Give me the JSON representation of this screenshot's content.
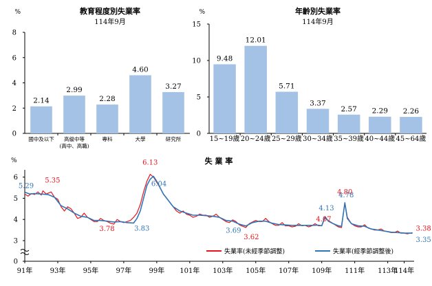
{
  "chart_data": [
    {
      "type": "bar",
      "title": "教育程度別失業率",
      "subtitle": "114年9月",
      "unit": "%",
      "categories": [
        "國中及以下",
        "高級中等\n(高中、高職)",
        "專科",
        "大學",
        "研究所"
      ],
      "values": [
        2.14,
        2.99,
        2.28,
        4.6,
        3.27
      ],
      "value_labels": [
        "2.14",
        "2.99",
        "2.28",
        "4.60",
        "3.27"
      ],
      "y_ticks": [
        "0",
        "2",
        "4",
        "6",
        "8"
      ],
      "ylim": [
        0,
        8
      ],
      "bar_color": "#a4c2e6"
    },
    {
      "type": "bar",
      "title": "年齡別失業率",
      "subtitle": "114年9月",
      "unit": "%",
      "categories": [
        "15~19歲",
        "20~24歲",
        "25~29歲",
        "30~34歲",
        "35~39歲",
        "40~44歲",
        "45~64歲"
      ],
      "values": [
        9.48,
        12.01,
        5.71,
        3.37,
        2.57,
        2.29,
        2.26
      ],
      "value_labels": [
        "9.48",
        "12.01",
        "5.71",
        "3.37",
        "2.57",
        "2.29",
        "2.26"
      ],
      "y_ticks": [
        "0",
        "5",
        "10",
        "15"
      ],
      "ylim": [
        0,
        15
      ],
      "bar_color": "#a4c2e6"
    },
    {
      "type": "line",
      "title": "失 業 率",
      "unit": "%",
      "x_ticks": [
        "91年",
        "93年",
        "95年",
        "97年",
        "99年",
        "101年",
        "103年",
        "105年",
        "107年",
        "109年",
        "111年",
        "113年",
        "114年"
      ],
      "y_ticks": [
        "0",
        "3",
        "4",
        "5",
        "6"
      ],
      "ylim": [
        3,
        6.5
      ],
      "axis_break": true,
      "grid": false,
      "legend_position": "bottom-right",
      "series": [
        {
          "name": "失業率(未經季節調整)",
          "color": "#e8141c",
          "points": [
            [
              91.0,
              5.2
            ],
            [
              91.2,
              5.1
            ],
            [
              91.4,
              5.22
            ],
            [
              91.6,
              5.18
            ],
            [
              91.8,
              5.3
            ],
            [
              92.0,
              5.15
            ],
            [
              92.1,
              5.35
            ],
            [
              92.3,
              5.2
            ],
            [
              92.6,
              5.3
            ],
            [
              92.8,
              5.05
            ],
            [
              93.0,
              4.95
            ],
            [
              93.2,
              4.6
            ],
            [
              93.4,
              4.4
            ],
            [
              93.6,
              4.6
            ],
            [
              93.8,
              4.5
            ],
            [
              94.0,
              4.3
            ],
            [
              94.2,
              4.05
            ],
            [
              94.4,
              4.1
            ],
            [
              94.6,
              4.3
            ],
            [
              94.8,
              4.1
            ],
            [
              95.0,
              4.0
            ],
            [
              95.2,
              3.9
            ],
            [
              95.4,
              3.9
            ],
            [
              95.6,
              4.05
            ],
            [
              95.8,
              3.95
            ],
            [
              96.0,
              3.9
            ],
            [
              96.2,
              3.82
            ],
            [
              96.4,
              3.78
            ],
            [
              96.6,
              4.0
            ],
            [
              96.8,
              3.9
            ],
            [
              97.0,
              3.85
            ],
            [
              97.2,
              3.9
            ],
            [
              97.4,
              3.95
            ],
            [
              97.6,
              4.1
            ],
            [
              97.8,
              4.3
            ],
            [
              98.0,
              4.7
            ],
            [
              98.2,
              5.3
            ],
            [
              98.4,
              5.8
            ],
            [
              98.6,
              6.13
            ],
            [
              98.8,
              6.0
            ],
            [
              99.0,
              5.75
            ],
            [
              99.2,
              5.5
            ],
            [
              99.4,
              5.2
            ],
            [
              99.6,
              5.0
            ],
            [
              99.8,
              4.8
            ],
            [
              100.0,
              4.6
            ],
            [
              100.2,
              4.4
            ],
            [
              100.4,
              4.3
            ],
            [
              100.6,
              4.4
            ],
            [
              100.8,
              4.25
            ],
            [
              101.0,
              4.2
            ],
            [
              101.2,
              4.1
            ],
            [
              101.4,
              4.15
            ],
            [
              101.6,
              4.25
            ],
            [
              101.8,
              4.2
            ],
            [
              102.0,
              4.2
            ],
            [
              102.2,
              4.1
            ],
            [
              102.4,
              4.15
            ],
            [
              102.6,
              4.25
            ],
            [
              102.8,
              4.1
            ],
            [
              103.0,
              4.0
            ],
            [
              103.2,
              3.9
            ],
            [
              103.4,
              3.85
            ],
            [
              103.6,
              3.98
            ],
            [
              103.8,
              3.9
            ],
            [
              104.0,
              3.75
            ],
            [
              104.2,
              3.68
            ],
            [
              104.4,
              3.62
            ],
            [
              104.6,
              3.8
            ],
            [
              104.8,
              3.88
            ],
            [
              105.0,
              3.95
            ],
            [
              105.2,
              3.9
            ],
            [
              105.4,
              3.9
            ],
            [
              105.6,
              4.05
            ],
            [
              105.8,
              3.9
            ],
            [
              106.0,
              3.8
            ],
            [
              106.2,
              3.72
            ],
            [
              106.4,
              3.72
            ],
            [
              106.6,
              3.85
            ],
            [
              106.8,
              3.7
            ],
            [
              107.0,
              3.7
            ],
            [
              107.2,
              3.65
            ],
            [
              107.4,
              3.68
            ],
            [
              107.6,
              3.8
            ],
            [
              107.8,
              3.7
            ],
            [
              108.0,
              3.72
            ],
            [
              108.2,
              3.65
            ],
            [
              108.4,
              3.7
            ],
            [
              108.6,
              3.8
            ],
            [
              108.8,
              3.7
            ],
            [
              109.0,
              3.7
            ],
            [
              109.2,
              4.07
            ],
            [
              109.4,
              3.95
            ],
            [
              109.6,
              3.85
            ],
            [
              109.8,
              3.75
            ],
            [
              110.0,
              3.65
            ],
            [
              110.2,
              3.62
            ],
            [
              110.4,
              4.8
            ],
            [
              110.55,
              4.1
            ],
            [
              110.8,
              3.8
            ],
            [
              111.0,
              3.7
            ],
            [
              111.2,
              3.65
            ],
            [
              111.4,
              3.65
            ],
            [
              111.6,
              3.75
            ],
            [
              111.8,
              3.6
            ],
            [
              112.0,
              3.55
            ],
            [
              112.2,
              3.5
            ],
            [
              112.4,
              3.5
            ],
            [
              112.6,
              3.55
            ],
            [
              112.8,
              3.45
            ],
            [
              113.0,
              3.42
            ],
            [
              113.2,
              3.38
            ],
            [
              113.4,
              3.38
            ],
            [
              113.6,
              3.45
            ],
            [
              113.8,
              3.35
            ],
            [
              114.0,
              3.35
            ],
            [
              114.2,
              3.32
            ],
            [
              114.5,
              3.38
            ]
          ]
        },
        {
          "name": "失業率(經季節調整後)",
          "color": "#2e75b6",
          "points": [
            [
              91.0,
              5.29
            ],
            [
              91.3,
              5.2
            ],
            [
              91.6,
              5.22
            ],
            [
              92.0,
              5.2
            ],
            [
              92.4,
              5.18
            ],
            [
              92.8,
              5.05
            ],
            [
              93.2,
              4.65
            ],
            [
              93.6,
              4.5
            ],
            [
              94.0,
              4.3
            ],
            [
              94.4,
              4.15
            ],
            [
              94.8,
              4.1
            ],
            [
              95.2,
              3.95
            ],
            [
              95.6,
              3.95
            ],
            [
              96.0,
              3.92
            ],
            [
              96.4,
              3.88
            ],
            [
              96.8,
              3.9
            ],
            [
              97.2,
              3.85
            ],
            [
              97.6,
              3.83
            ],
            [
              97.8,
              4.05
            ],
            [
              98.0,
              4.4
            ],
            [
              98.2,
              5.0
            ],
            [
              98.4,
              5.6
            ],
            [
              98.6,
              5.9
            ],
            [
              98.8,
              6.04
            ],
            [
              99.0,
              5.8
            ],
            [
              99.2,
              5.5
            ],
            [
              99.4,
              5.2
            ],
            [
              99.6,
              5.0
            ],
            [
              99.8,
              4.8
            ],
            [
              100.0,
              4.6
            ],
            [
              100.4,
              4.4
            ],
            [
              100.8,
              4.3
            ],
            [
              101.2,
              4.2
            ],
            [
              101.6,
              4.2
            ],
            [
              102.0,
              4.18
            ],
            [
              102.4,
              4.15
            ],
            [
              102.8,
              4.1
            ],
            [
              103.2,
              3.95
            ],
            [
              103.6,
              3.92
            ],
            [
              104.0,
              3.78
            ],
            [
              104.4,
              3.69
            ],
            [
              104.8,
              3.85
            ],
            [
              105.2,
              3.92
            ],
            [
              105.6,
              3.92
            ],
            [
              106.0,
              3.82
            ],
            [
              106.4,
              3.76
            ],
            [
              106.8,
              3.74
            ],
            [
              107.2,
              3.72
            ],
            [
              107.6,
              3.72
            ],
            [
              108.0,
              3.72
            ],
            [
              108.4,
              3.72
            ],
            [
              108.8,
              3.73
            ],
            [
              109.0,
              3.7
            ],
            [
              109.2,
              4.13
            ],
            [
              109.4,
              3.92
            ],
            [
              109.7,
              3.8
            ],
            [
              110.0,
              3.7
            ],
            [
              110.2,
              3.68
            ],
            [
              110.4,
              4.78
            ],
            [
              110.55,
              4.05
            ],
            [
              110.8,
              3.8
            ],
            [
              111.2,
              3.7
            ],
            [
              111.6,
              3.68
            ],
            [
              112.0,
              3.55
            ],
            [
              112.4,
              3.5
            ],
            [
              112.8,
              3.45
            ],
            [
              113.2,
              3.4
            ],
            [
              113.6,
              3.38
            ],
            [
              114.0,
              3.36
            ],
            [
              114.5,
              3.35
            ]
          ]
        }
      ],
      "annotations": [
        {
          "text": "5.29",
          "series": 1,
          "x": 91.0,
          "y": 5.29
        },
        {
          "text": "5.35",
          "series": 0,
          "x": 92.1,
          "y": 5.35
        },
        {
          "text": "6.13",
          "series": 0,
          "x": 98.6,
          "y": 6.13
        },
        {
          "text": "6.04",
          "series": 1,
          "x": 98.8,
          "y": 6.04
        },
        {
          "text": "3.78",
          "series": 0,
          "x": 96.4,
          "y": 3.78
        },
        {
          "text": "3.83",
          "series": 1,
          "x": 97.6,
          "y": 3.83
        },
        {
          "text": "3.69",
          "series": 1,
          "x": 104.4,
          "y": 3.69
        },
        {
          "text": "3.62",
          "series": 0,
          "x": 104.4,
          "y": 3.62
        },
        {
          "text": "4.13",
          "series": 1,
          "x": 109.2,
          "y": 4.13
        },
        {
          "text": "4.07",
          "series": 0,
          "x": 109.2,
          "y": 4.07
        },
        {
          "text": "4.80",
          "series": 0,
          "x": 110.4,
          "y": 4.8
        },
        {
          "text": "4.78",
          "series": 1,
          "x": 110.4,
          "y": 4.78
        },
        {
          "text": "3.38",
          "series": 0,
          "x": 114.5,
          "y": 3.38
        },
        {
          "text": "3.35",
          "series": 1,
          "x": 114.5,
          "y": 3.35
        }
      ]
    }
  ]
}
